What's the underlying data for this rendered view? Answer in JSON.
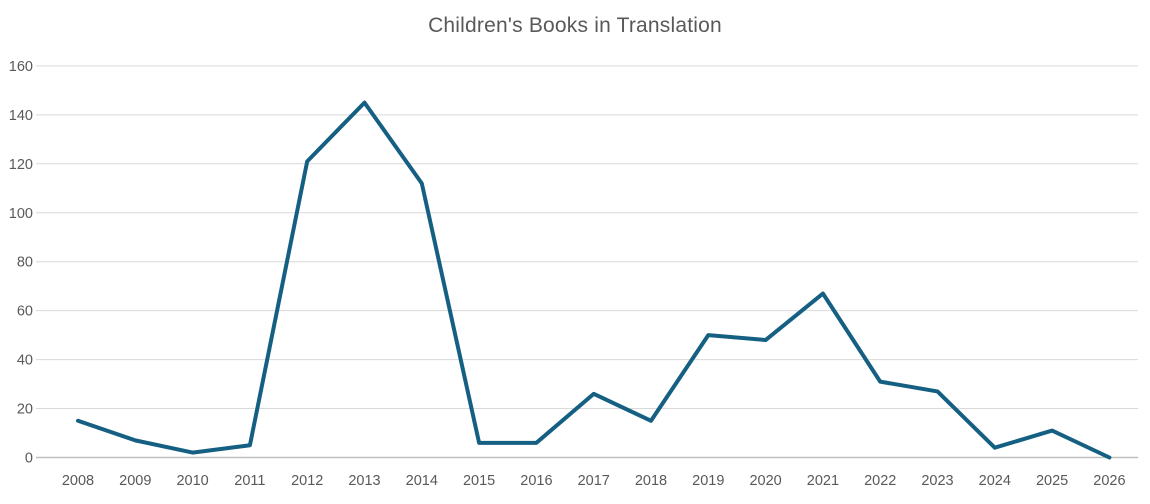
{
  "chart_data": {
    "type": "line",
    "title": "Children's Books in Translation",
    "categories": [
      "2008",
      "2009",
      "2010",
      "2011",
      "2012",
      "2013",
      "2014",
      "2015",
      "2016",
      "2017",
      "2018",
      "2019",
      "2020",
      "2021",
      "2022",
      "2023",
      "2024",
      "2025",
      "2026"
    ],
    "series": [
      {
        "name": "Children's Books in Translation",
        "values": [
          15,
          7,
          2,
          5,
          121,
          145,
          112,
          6,
          6,
          26,
          15,
          50,
          48,
          67,
          31,
          27,
          4,
          11,
          0
        ]
      }
    ],
    "xlabel": "",
    "ylabel": "",
    "ylim": [
      0,
      160
    ],
    "yticks": [
      0,
      20,
      40,
      60,
      80,
      100,
      120,
      140,
      160
    ],
    "grid": true,
    "legend": "none",
    "colors": {
      "line": "#156082",
      "text": "#595959",
      "gridline": "#D9D9D9",
      "axis_line": "#BFBFBF",
      "background": "#FFFFFF"
    }
  }
}
